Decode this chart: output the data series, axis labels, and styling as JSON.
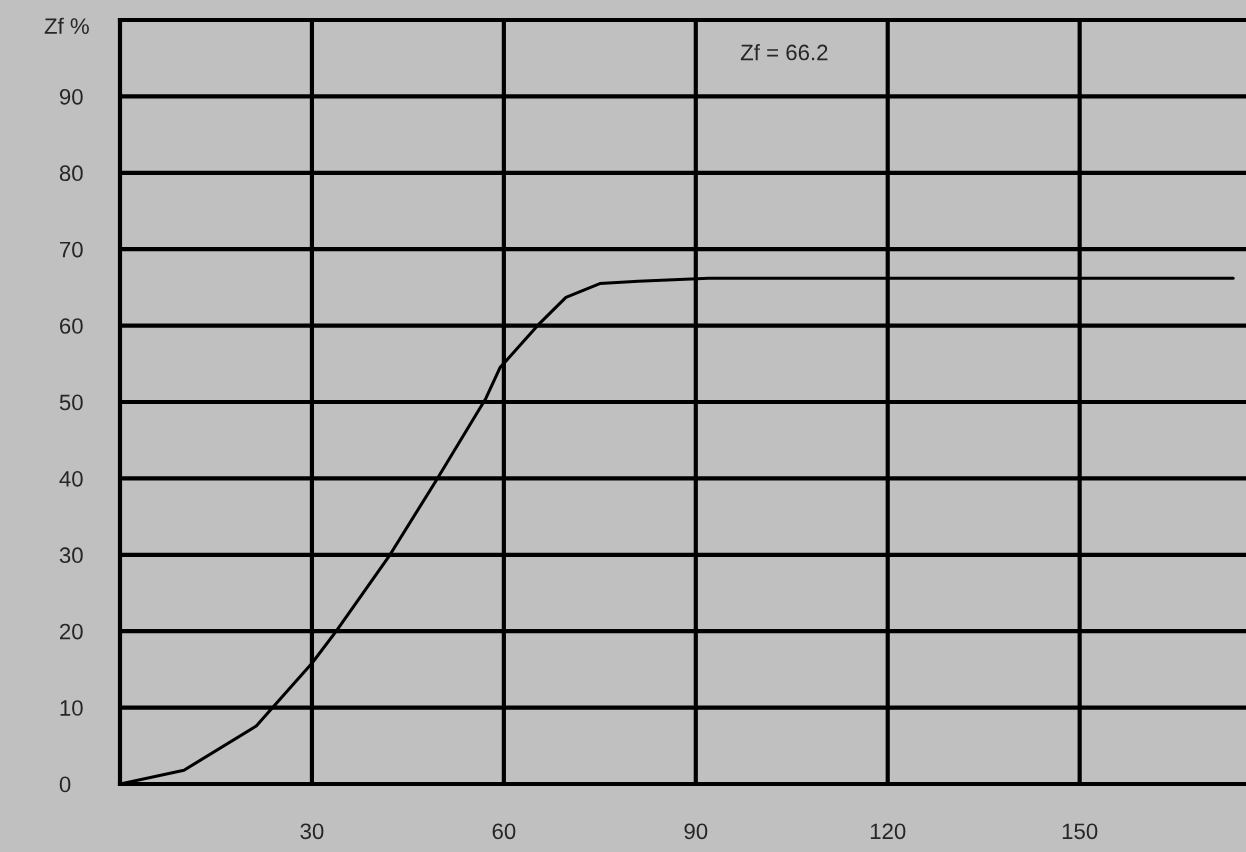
{
  "chart_data": {
    "type": "line",
    "ylabel": "Zf %",
    "annotations": [
      "Zf = 66.2"
    ],
    "x": [
      0,
      10,
      21.3,
      30,
      33.8,
      42.2,
      49.4,
      57.2,
      59.4,
      65.6,
      69.7,
      75,
      81,
      92,
      174
    ],
    "series": [
      {
        "color": "#000000",
        "values": [
          0,
          1.8,
          7.6,
          15.8,
          20,
          30,
          39.7,
          50.5,
          54.5,
          60.3,
          63.7,
          65.5,
          65.8,
          66.2,
          66.2
        ]
      }
    ],
    "xlim": [
      0,
      176
    ],
    "ylim": [
      0,
      100
    ],
    "xticks": [
      30,
      60,
      90,
      120,
      150
    ],
    "yticks": [
      0,
      10,
      20,
      30,
      40,
      50,
      60,
      70,
      80,
      90
    ],
    "grid": true,
    "marker": "none",
    "line_style": "solid"
  }
}
